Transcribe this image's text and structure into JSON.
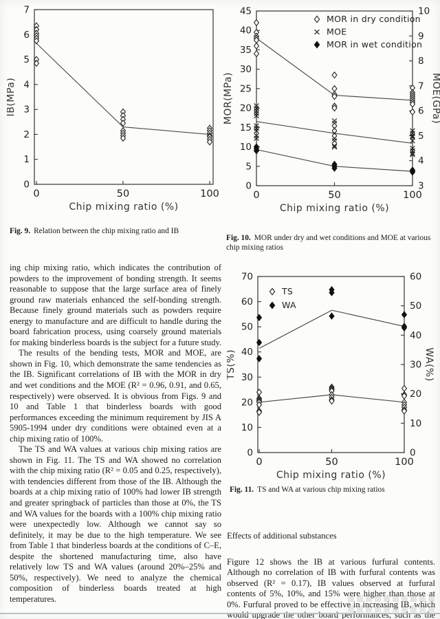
{
  "page": {
    "fig9": {
      "caption_label": "Fig. 9.",
      "caption_text": "Relation between the chip mixing ratio and IB"
    },
    "fig10": {
      "caption_label": "Fig. 10.",
      "caption_text": "MOR under dry and wet conditions and MOE at various chip mixing ratios"
    },
    "fig11": {
      "caption_label": "Fig. 11.",
      "caption_text": "TS and WA at various chip mixing ratios"
    },
    "left_column": {
      "para1": "ing chip mixing ratio, which indicates the contribution of powders to the improvement of bonding strength. It seems reasonable to suppose that the large surface area of finely ground raw materials enhanced the self-bonding strength. Because finely ground materials such as powders require energy to manufacture and are difficult to handle during the board fabrication process, using coarsely ground materials for making binderless boards is the subject for a future study.",
      "para2": "The results of the bending tests, MOR and MOE, are shown in Fig. 10, which demonstrate the same tendencies as the IB. Significant correlations of IB with the MOR in dry and wet conditions and the MOE (R² = 0.96, 0.91, and 0.65, respectively) were observed. It is obvious from Figs. 9 and 10 and Table 1 that binderless boards with good performances exceeding the minimum requirement by JIS A 5905-1994 under dry conditions were obtained even at a chip mixing ratio of 100%.",
      "para3": "The TS and WA values at various chip mixing ratios are shown in Fig. 11. The TS and WA showed no correlation with the chip mixing ratio (R² = 0.05 and 0.25, respectively), with tendencies different from those of the IB. Although the boards at a chip mixing ratio of 100% had lower IB strength and greater springback of particles than those at 0%, the TS and WA values for the boards with a 100% chip mixing ratio were unexpectedly low. Although we cannot say so definitely, it may be due to the high temperature. We see from Table 1 that binderless boards at the conditions of C–E, despite the shortened manufacturing time, also have relatively low TS and WA values (around 20%–25% and 50%, respectively). We need to analyze the chemical composition of binderless boards treated at high temperatures."
    },
    "right_column": {
      "heading": "Effects of additional substances",
      "para1": "Figure 12 shows the IB at various furfural contents. Although no correlation of IB with furfural contents was observed (R² = 0.17), IB values observed at furfural contents of 5%, 10%, and 15% were higher than those at 0%. Furfural proved to be effective in increasing IB, which would upgrade the other board performances, such as the MOR."
    }
  },
  "chart_data": [
    {
      "id": "fig9",
      "type": "scatter",
      "x_axis": {
        "label": "Chip mixing ratio (%)",
        "min": 0,
        "max": 100,
        "ticks": [
          0,
          50,
          100
        ]
      },
      "y_axis": {
        "label": "IB(MPa)",
        "min": 0,
        "max": 7,
        "ticks": [
          0,
          1,
          2,
          3,
          4,
          5,
          6,
          7
        ]
      },
      "grid": false,
      "series": [
        {
          "name": "IB",
          "marker": "open-diamond",
          "axis": "left",
          "points": [
            [
              0,
              6.35
            ],
            [
              0,
              6.2
            ],
            [
              0,
              6.05
            ],
            [
              0,
              5.95
            ],
            [
              0,
              5.85
            ],
            [
              0,
              5.75
            ],
            [
              0,
              5.0
            ],
            [
              0,
              4.85
            ],
            [
              50,
              2.9
            ],
            [
              50,
              2.75
            ],
            [
              50,
              2.6
            ],
            [
              50,
              2.45
            ],
            [
              50,
              2.15
            ],
            [
              50,
              2.05
            ],
            [
              50,
              1.95
            ],
            [
              50,
              1.85
            ],
            [
              100,
              2.25
            ],
            [
              100,
              2.15
            ],
            [
              100,
              2.05
            ],
            [
              100,
              1.95
            ],
            [
              100,
              1.9
            ],
            [
              100,
              1.8
            ],
            [
              100,
              1.7
            ]
          ]
        }
      ],
      "lines": [
        {
          "name": "IB trend",
          "axis": "left",
          "points": [
            [
              0,
              5.65
            ],
            [
              50,
              2.3
            ],
            [
              100,
              2.0
            ]
          ]
        }
      ]
    },
    {
      "id": "fig10",
      "type": "scatter",
      "x_axis": {
        "label": "Chip mixing ratio (%)",
        "min": 0,
        "max": 100,
        "ticks": [
          0,
          50,
          100
        ]
      },
      "y_axis": {
        "label": "MOR(MPa)",
        "min": 0,
        "max": 45,
        "ticks": [
          0,
          5,
          10,
          15,
          20,
          25,
          30,
          35,
          40,
          45
        ]
      },
      "y2_axis": {
        "label": "MOE(GPa)",
        "min": 3,
        "max": 10,
        "ticks": [
          3,
          4,
          5,
          6,
          7,
          8,
          9,
          10
        ]
      },
      "grid": false,
      "legend": [
        {
          "label": "MOR in dry condition",
          "marker": "open-diamond"
        },
        {
          "label": "MOE",
          "marker": "cross"
        },
        {
          "label": "MOR in wet condition",
          "marker": "filled-diamond"
        }
      ],
      "series": [
        {
          "name": "MOR in dry condition",
          "marker": "open-diamond",
          "axis": "left",
          "points": [
            [
              0,
              42
            ],
            [
              0,
              39.5
            ],
            [
              0,
              38.5
            ],
            [
              0,
              38
            ],
            [
              0,
              37.5
            ],
            [
              0,
              36
            ],
            [
              0,
              34
            ],
            [
              50,
              28.5
            ],
            [
              50,
              25
            ],
            [
              50,
              23.5
            ],
            [
              50,
              23
            ],
            [
              50,
              20.5
            ],
            [
              50,
              20
            ],
            [
              100,
              25.2
            ],
            [
              100,
              24
            ],
            [
              100,
              23.5
            ],
            [
              100,
              23
            ],
            [
              100,
              22.5
            ],
            [
              100,
              22
            ],
            [
              100,
              21.5
            ],
            [
              100,
              21
            ],
            [
              100,
              19
            ]
          ]
        },
        {
          "name": "MOE",
          "marker": "cross",
          "axis": "right",
          "points": [
            [
              0,
              6.2
            ],
            [
              0,
              6.1
            ],
            [
              0,
              6.0
            ],
            [
              0,
              5.9
            ],
            [
              0,
              5.8
            ],
            [
              0,
              5.4
            ],
            [
              0,
              5.3
            ],
            [
              0,
              5.2
            ],
            [
              0,
              5.0
            ],
            [
              0,
              4.9
            ],
            [
              50,
              5.6
            ],
            [
              50,
              5.5
            ],
            [
              50,
              5.3
            ],
            [
              50,
              5.1
            ],
            [
              50,
              4.9
            ],
            [
              50,
              4.8
            ],
            [
              50,
              4.6
            ],
            [
              50,
              4.55
            ],
            [
              100,
              5.2
            ],
            [
              100,
              5.1
            ],
            [
              100,
              5.0
            ],
            [
              100,
              4.95
            ],
            [
              100,
              4.8
            ],
            [
              100,
              4.5
            ],
            [
              100,
              4.4
            ],
            [
              100,
              4.3
            ],
            [
              100,
              4.25
            ]
          ]
        },
        {
          "name": "MOR in wet condition",
          "marker": "filled-diamond",
          "axis": "left",
          "points": [
            [
              0,
              10
            ],
            [
              0,
              9.5
            ],
            [
              0,
              9
            ],
            [
              50,
              5.5
            ],
            [
              50,
              5
            ],
            [
              50,
              4.5
            ],
            [
              100,
              4
            ],
            [
              100,
              3.7
            ],
            [
              100,
              3.5
            ]
          ]
        }
      ],
      "lines": [
        {
          "name": "MOR dry trend",
          "axis": "left",
          "points": [
            [
              0,
              38
            ],
            [
              50,
              23.3
            ],
            [
              100,
              22
            ]
          ]
        },
        {
          "name": "MOE trend",
          "axis": "right",
          "points": [
            [
              0,
              5.57
            ],
            [
              50,
              5.1
            ],
            [
              100,
              4.7
            ]
          ]
        },
        {
          "name": "MOR wet trend",
          "axis": "left",
          "points": [
            [
              0,
              9.3
            ],
            [
              50,
              5.0
            ],
            [
              100,
              3.7
            ]
          ]
        }
      ]
    },
    {
      "id": "fig11",
      "type": "scatter",
      "x_axis": {
        "label": "Chip mixing ratio (%)",
        "min": 0,
        "max": 100,
        "ticks": [
          0,
          50,
          100
        ]
      },
      "y_axis": {
        "label": "TS(%)",
        "min": 0,
        "max": 70,
        "ticks": [
          0,
          10,
          20,
          30,
          40,
          50,
          60,
          70
        ]
      },
      "y2_axis": {
        "label": "WA(%)",
        "min": 0,
        "max": 60,
        "ticks": [
          0,
          10,
          20,
          30,
          40,
          50,
          60
        ]
      },
      "grid": false,
      "legend": [
        {
          "label": "TS",
          "marker": "open-diamond"
        },
        {
          "label": "WA",
          "marker": "filled-diamond"
        }
      ],
      "series": [
        {
          "name": "TS",
          "marker": "open-diamond",
          "axis": "left",
          "points": [
            [
              0,
              24
            ],
            [
              0,
              21.5
            ],
            [
              0,
              21
            ],
            [
              0,
              20.5
            ],
            [
              0,
              20
            ],
            [
              0,
              19
            ],
            [
              0,
              16.5
            ],
            [
              0,
              16
            ],
            [
              50,
              26
            ],
            [
              50,
              25.5
            ],
            [
              50,
              25
            ],
            [
              50,
              24.5
            ],
            [
              50,
              23
            ],
            [
              50,
              22
            ],
            [
              50,
              21
            ],
            [
              50,
              20.5
            ],
            [
              100,
              25.5
            ],
            [
              100,
              23
            ],
            [
              100,
              22.5
            ],
            [
              100,
              20
            ],
            [
              100,
              19
            ],
            [
              100,
              18
            ],
            [
              100,
              17
            ],
            [
              100,
              16.5
            ]
          ]
        },
        {
          "name": "WA",
          "marker": "filled-diamond",
          "axis": "right",
          "points": [
            [
              0,
              46
            ],
            [
              0,
              37.5
            ],
            [
              0,
              32
            ],
            [
              50,
              55.5
            ],
            [
              50,
              54.5
            ],
            [
              50,
              46.5
            ],
            [
              100,
              47
            ],
            [
              100,
              43
            ],
            [
              100,
              42.5
            ]
          ]
        }
      ],
      "lines": [
        {
          "name": "TS trend",
          "axis": "left",
          "points": [
            [
              0,
              20
            ],
            [
              50,
              23
            ],
            [
              100,
              20
            ]
          ]
        },
        {
          "name": "WA trend",
          "axis": "right",
          "points": [
            [
              0,
              35.5
            ],
            [
              50,
              48.5
            ],
            [
              100,
              43
            ]
          ]
        }
      ]
    }
  ]
}
